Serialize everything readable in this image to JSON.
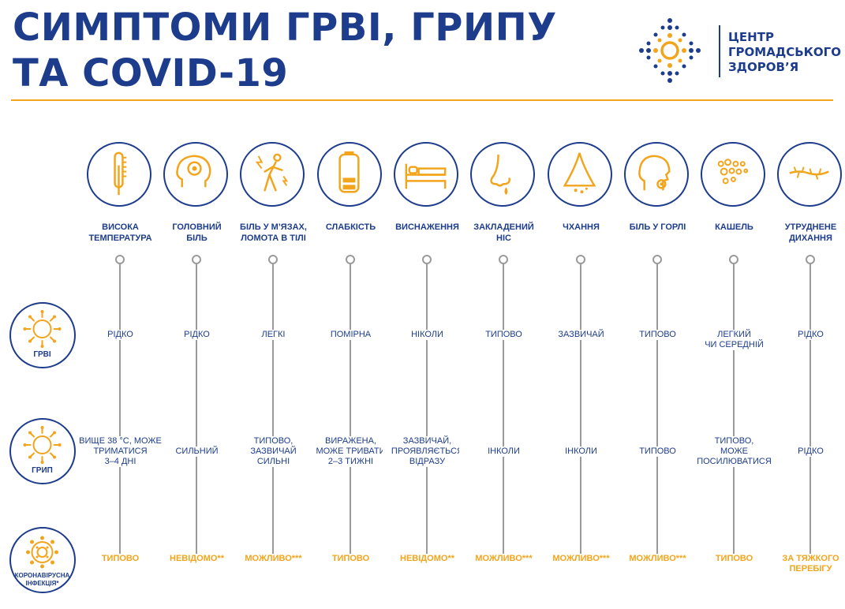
{
  "header": {
    "title_line1": "СИМПТОМИ ГРВІ, ГРИПУ",
    "title_line2": "ТА COVID-19"
  },
  "logo": {
    "line1": "ЦЕНТР",
    "line2": "ГРОМАДСЬКОГО",
    "line3": "ЗДОРОВ’Я",
    "icon": "cross-dots-logo"
  },
  "colors": {
    "navy": "#1d3c8b",
    "orange": "#f2a51c",
    "gray": "#9a9a9a"
  },
  "diseases": [
    {
      "key": "arvi",
      "label": "ГРВІ",
      "icon": "virus-icon"
    },
    {
      "key": "flu",
      "label": "ГРИП",
      "icon": "virus-icon"
    },
    {
      "key": "covid",
      "label_line1": "КОРОНАВІРУСНА",
      "label_line2": "ІНФЕКЦІЯ*",
      "icon": "coronavirus-icon"
    }
  ],
  "symptoms": [
    {
      "icon": "thermometer-icon",
      "label": [
        "ВИСОКА",
        "ТЕМПЕРАТУРА"
      ],
      "arvi": [
        "РІДКО"
      ],
      "flu": [
        "ВИЩЕ 38 °С, МОЖЕ",
        "ТРИМАТИСЯ",
        "3–4 ДНІ"
      ],
      "covid": [
        "ТИПОВО"
      ]
    },
    {
      "icon": "headache-icon",
      "label": [
        "ГОЛОВНИЙ",
        "БІЛЬ"
      ],
      "arvi": [
        "РІДКО"
      ],
      "flu": [
        "СИЛЬНИЙ"
      ],
      "covid": [
        "НЕВІДОМО**"
      ]
    },
    {
      "icon": "muscle-pain-icon",
      "label": [
        "БІЛЬ У М’ЯЗАХ,",
        "ЛОМОТА В ТІЛІ"
      ],
      "arvi": [
        "ЛЕГКІ"
      ],
      "flu": [
        "ТИПОВО,",
        "ЗАЗВИЧАЙ",
        "СИЛЬНІ"
      ],
      "covid": [
        "МОЖЛИВО***"
      ]
    },
    {
      "icon": "battery-icon",
      "label": [
        "СЛАБКІСТЬ"
      ],
      "arvi": [
        "ПОМІРНА"
      ],
      "flu": [
        "ВИРАЖЕНА,",
        "МОЖЕ ТРИВАТИ",
        "2–3 ТИЖНІ"
      ],
      "covid": [
        "ТИПОВО"
      ]
    },
    {
      "icon": "bed-icon",
      "label": [
        "ВИСНАЖЕННЯ"
      ],
      "arvi": [
        "НІКОЛИ"
      ],
      "flu": [
        "ЗАЗВИЧАЙ,",
        "ПРОЯВЛЯЄТЬСЯ",
        "ВІДРАЗУ"
      ],
      "covid": [
        "НЕВІДОМО**"
      ]
    },
    {
      "icon": "nose-icon",
      "label": [
        "ЗАКЛАДЕНИЙ",
        "НІС"
      ],
      "arvi": [
        "ТИПОВО"
      ],
      "flu": [
        "ІНКОЛИ"
      ],
      "covid": [
        "МОЖЛИВО***"
      ]
    },
    {
      "icon": "sneeze-icon",
      "label": [
        "ЧХАННЯ"
      ],
      "arvi": [
        "ЗАЗВИЧАЙ"
      ],
      "flu": [
        "ІНКОЛИ"
      ],
      "covid": [
        "МОЖЛИВО***"
      ]
    },
    {
      "icon": "sore-throat-icon",
      "label": [
        "БІЛЬ У ГОРЛІ"
      ],
      "arvi": [
        "ТИПОВО"
      ],
      "flu": [
        "ТИПОВО"
      ],
      "covid": [
        "МОЖЛИВО***"
      ]
    },
    {
      "icon": "cough-icon",
      "label": [
        "КАШЕЛЬ"
      ],
      "arvi": [
        "ЛЕГКИЙ",
        "ЧИ СЕРЕДНІЙ"
      ],
      "flu": [
        "ТИПОВО,",
        "МОЖЕ",
        "ПОСИЛЮВАТИСЯ"
      ],
      "covid": [
        "ТИПОВО"
      ]
    },
    {
      "icon": "lungs-icon",
      "label": [
        "УТРУДНЕНЕ",
        "ДИХАННЯ"
      ],
      "arvi": [
        "РІДКО"
      ],
      "flu": [
        "РІДКО"
      ],
      "covid": [
        "ЗА ТЯЖКОГО",
        "ПЕРЕБІГУ"
      ]
    }
  ]
}
